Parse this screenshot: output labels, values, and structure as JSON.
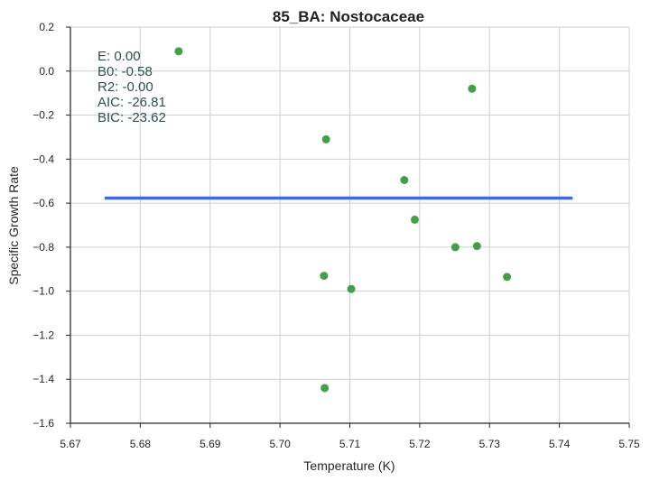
{
  "chart_data": {
    "type": "scatter",
    "title": "85_BA: Nostocaceae",
    "xlabel": "Temperature (K)",
    "ylabel": "Specific Growth Rate",
    "xlim": [
      5.67,
      5.75
    ],
    "ylim": [
      -1.6,
      0.2
    ],
    "xticks": [
      5.67,
      5.68,
      5.69,
      5.7,
      5.71,
      5.72,
      5.73,
      5.74,
      5.75
    ],
    "xtick_labels": [
      "5.67",
      "5.68",
      "5.69",
      "5.70",
      "5.71",
      "5.72",
      "5.73",
      "5.74",
      "5.75"
    ],
    "yticks": [
      0.2,
      0.0,
      -0.2,
      -0.4,
      -0.6,
      -0.8,
      -1.0,
      -1.2,
      -1.4,
      -1.6
    ],
    "ytick_labels": [
      "0.2",
      "0.0",
      "−0.2",
      "−0.4",
      "−0.6",
      "−0.8",
      "−1.0",
      "−1.2",
      "−1.4",
      "−1.6"
    ],
    "grid": true,
    "points": [
      {
        "x": 5.6855,
        "y": 0.09
      },
      {
        "x": 5.7275,
        "y": -0.08
      },
      {
        "x": 5.7066,
        "y": -0.31
      },
      {
        "x": 5.7178,
        "y": -0.495
      },
      {
        "x": 5.7193,
        "y": -0.675
      },
      {
        "x": 5.7251,
        "y": -0.8
      },
      {
        "x": 5.7282,
        "y": -0.795
      },
      {
        "x": 5.7325,
        "y": -0.935
      },
      {
        "x": 5.7063,
        "y": -0.93
      },
      {
        "x": 5.7102,
        "y": -0.99
      },
      {
        "x": 5.7064,
        "y": -1.44
      }
    ],
    "fit_line": {
      "x": [
        5.6749,
        5.7419
      ],
      "y": [
        -0.577,
        -0.577
      ]
    },
    "colors": {
      "points": "#43a047",
      "fit_line": "#4169e1",
      "grid": "#d0d0d0",
      "axis": "#262626"
    },
    "stats_lines": [
      "E:  0.00",
      "B0:  -0.58",
      "R2:  -0.00",
      "AIC: -26.81",
      "BIC: -23.62"
    ]
  }
}
